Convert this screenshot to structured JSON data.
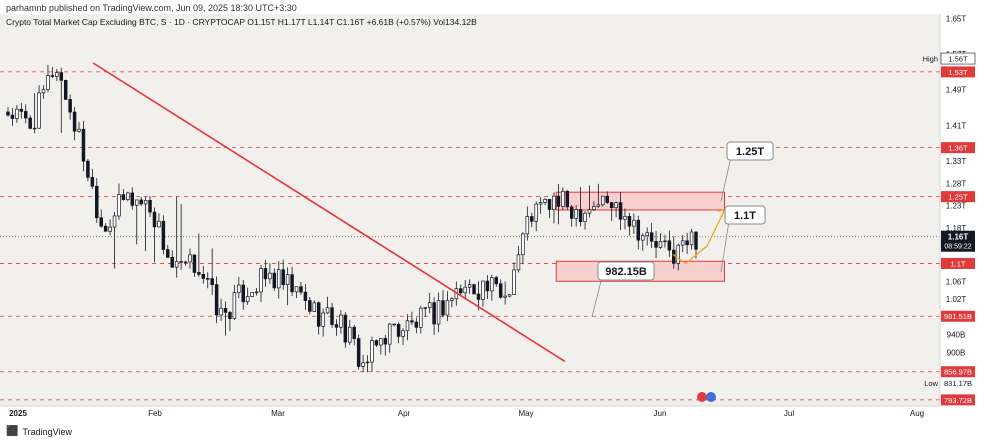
{
  "header": {
    "published": "parhamnb published on TradingView.com, Jun 09, 2025 18:30 UTC+3:30"
  },
  "legend": {
    "text": "Crypto Total Market Cap Excluding BTC, S · 1D · CRYPTOCAP  O1.15T  H1.17T  L1.14T  C1.16T  +6.61B (+0.57%)  Vol134.12B"
  },
  "footer": {
    "brand": "TradingView"
  },
  "colors": {
    "background": "#f2f0ed",
    "up": "#131722",
    "down": "#131722",
    "level": "#e03a3a",
    "trendline": "#e8323c",
    "projection": "#f0a020",
    "zone_fill": "#f7cfcf"
  },
  "chart_data": {
    "type": "candlestick",
    "title": "Crypto Total Market Cap Excluding BTC",
    "timeframe": "1D",
    "ylim": [
      0.78,
      1.66
    ],
    "x_ticks": [
      "2025",
      "Feb",
      "Mar",
      "Apr",
      "May",
      "Jun",
      "Jul",
      "Aug"
    ],
    "y_ticks": [
      "1.65T",
      "1.57T",
      "1.49T",
      "1.41T",
      "1.33T",
      "1.28T",
      "1.23T",
      "1.18T",
      "1.06T",
      "1.02T",
      "940B",
      "900B"
    ],
    "y_tick_values": [
      1.65,
      1.57,
      1.49,
      1.41,
      1.33,
      1.28,
      1.23,
      1.18,
      1.06,
      1.02,
      0.94,
      0.9
    ],
    "levels": [
      {
        "label": "1.53T",
        "value": 1.53
      },
      {
        "label": "1.36T",
        "value": 1.36
      },
      {
        "label": "1.25T",
        "value": 1.25
      },
      {
        "label": "1.1T",
        "value": 1.1
      },
      {
        "label": "981.51B",
        "value": 0.98151
      },
      {
        "label": "856.97B",
        "value": 0.85697
      },
      {
        "label": "793.72B",
        "value": 0.79372
      }
    ],
    "high": {
      "label": "High",
      "value_label": "1.56T",
      "value": 1.56
    },
    "low": {
      "label": "Low",
      "value_label": "831.17B",
      "value": 0.83117
    },
    "last": {
      "price": "1.16T",
      "countdown": "08:59:22",
      "value": 1.16
    },
    "zones": [
      {
        "top": 1.26,
        "bottom": 1.22,
        "start": "May 8",
        "end": "Jun 16"
      },
      {
        "top": 1.105,
        "bottom": 1.06,
        "start": "May 8",
        "end": "Jun 16"
      }
    ],
    "annotations": [
      {
        "text": "1.25T",
        "value": 1.25
      },
      {
        "text": "1.1T",
        "value": 1.1
      },
      {
        "text": "982.15B",
        "value": 0.98215
      }
    ],
    "trendline": {
      "from": {
        "date": "Jan 18",
        "value": 1.55
      },
      "to": {
        "date": "May 10",
        "value": 0.88
      }
    },
    "projection": [
      {
        "date": "Jun 4",
        "value": 1.12
      },
      {
        "date": "Jun 7",
        "value": 1.1
      },
      {
        "date": "Jun 12",
        "value": 1.14
      },
      {
        "date": "Jun 16",
        "value": 1.22
      }
    ],
    "anchors": [
      {
        "c": 1.44,
        "h": 1.47,
        "l": 1.4
      },
      {
        "c": 1.41,
        "h": 1.47,
        "l": 1.39
      },
      {
        "c": 1.55,
        "h": 1.57,
        "l": 1.41
      },
      {
        "c": 1.38,
        "h": 1.48,
        "l": 1.34
      },
      {
        "c": 1.18,
        "h": 1.43,
        "l": 1.02
      },
      {
        "c": 1.25,
        "h": 1.29,
        "l": 1.16
      },
      {
        "c": 1.23,
        "h": 1.25,
        "l": 1.12
      },
      {
        "c": 1.08,
        "h": 1.26,
        "l": 1.02
      },
      {
        "c": 1.1,
        "h": 1.17,
        "l": 1.02
      },
      {
        "c": 0.98,
        "h": 1.11,
        "l": 0.93
      },
      {
        "c": 1.04,
        "h": 1.06,
        "l": 0.98
      },
      {
        "c": 1.07,
        "h": 1.11,
        "l": 1.03
      },
      {
        "c": 1.04,
        "h": 1.09,
        "l": 1.0
      },
      {
        "c": 0.99,
        "h": 1.06,
        "l": 0.98
      },
      {
        "c": 0.97,
        "h": 1.0,
        "l": 0.93
      },
      {
        "c": 0.87,
        "h": 1.0,
        "l": 0.83
      },
      {
        "c": 0.95,
        "h": 0.98,
        "l": 0.9
      },
      {
        "c": 0.96,
        "h": 0.98,
        "l": 0.92
      },
      {
        "c": 0.99,
        "h": 1.02,
        "l": 0.95
      },
      {
        "c": 1.04,
        "h": 1.06,
        "l": 1.01
      },
      {
        "c": 1.05,
        "h": 1.06,
        "l": 1.02
      },
      {
        "c": 1.03,
        "h": 1.06,
        "l": 1.01
      },
      {
        "c": 1.21,
        "h": 1.22,
        "l": 1.03
      },
      {
        "c": 1.24,
        "h": 1.28,
        "l": 1.19
      },
      {
        "c": 1.22,
        "h": 1.27,
        "l": 1.18
      },
      {
        "c": 1.24,
        "h": 1.28,
        "l": 1.2
      },
      {
        "c": 1.22,
        "h": 1.25,
        "l": 1.19
      },
      {
        "c": 1.15,
        "h": 1.22,
        "l": 1.12
      },
      {
        "c": 1.12,
        "h": 1.16,
        "l": 1.09
      },
      {
        "c": 1.16,
        "h": 1.17,
        "l": 1.14
      }
    ]
  }
}
